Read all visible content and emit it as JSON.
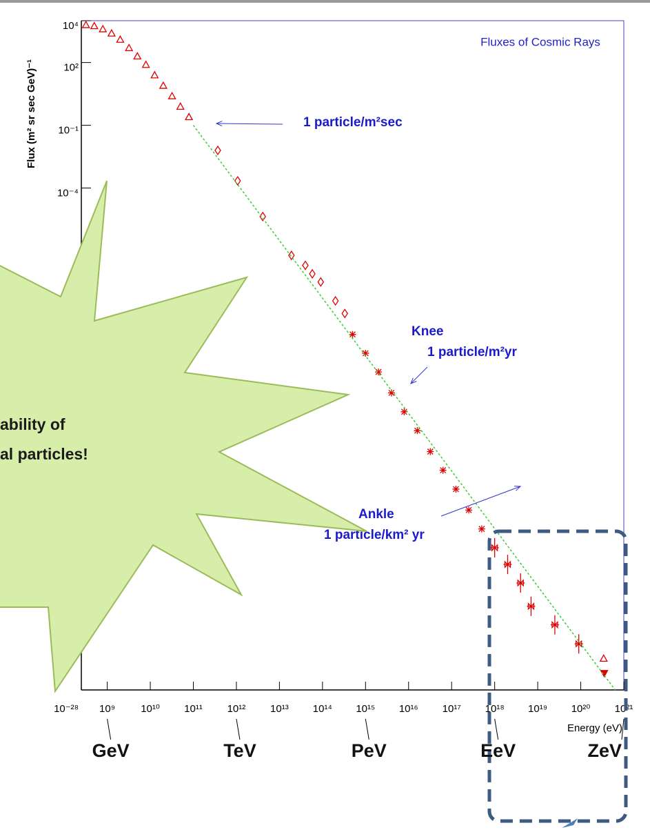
{
  "chart_data": {
    "type": "scatter",
    "title": "Fluxes of Cosmic Rays",
    "x_label": "Energy (eV)",
    "y_label": "Flux (m² sr sec GeV)⁻¹",
    "log_x": true,
    "log_y": true,
    "xlim": [
      250000000.0,
      1e+21
    ],
    "ylim": [
      1e-28,
      10000.0
    ],
    "xticks": [
      {
        "value": 1000000000.0,
        "label": "10⁹"
      },
      {
        "value": 10000000000.0,
        "label": "10¹⁰"
      },
      {
        "value": 100000000000.0,
        "label": "10¹¹"
      },
      {
        "value": 1000000000000.0,
        "label": "10¹²"
      },
      {
        "value": 10000000000000.0,
        "label": "10¹³"
      },
      {
        "value": 100000000000000.0,
        "label": "10¹⁴"
      },
      {
        "value": 1000000000000000.0,
        "label": "10¹⁵"
      },
      {
        "value": 1e+16,
        "label": "10¹⁶"
      },
      {
        "value": 1e+17,
        "label": "10¹⁷"
      },
      {
        "value": 1e+18,
        "label": "10¹⁸"
      },
      {
        "value": 1e+19,
        "label": "10¹⁹"
      },
      {
        "value": 1e+20,
        "label": "10²⁰"
      },
      {
        "value": 1e+21,
        "label": "10²¹"
      }
    ],
    "yticks": [
      {
        "value": 10000.0,
        "label": "10⁴"
      },
      {
        "value": 100.0,
        "label": "10²"
      },
      {
        "value": 0.1,
        "label": "10⁻¹"
      },
      {
        "value": 0.0001,
        "label": "10⁻⁴"
      },
      {
        "value": 1e-28,
        "label": "10⁻²⁸"
      }
    ],
    "series": [
      {
        "color": "#e00000",
        "marker": "triangle",
        "x": [
          320000000.0,
          500000000.0,
          790000000.0,
          1260000000.0,
          2000000000.0,
          3200000000.0,
          5000000000.0,
          7900000000.0,
          12600000000.0,
          20000000000.0,
          32000000000.0,
          50000000000.0,
          79000000000.0
        ],
        "values": [
          6300,
          5600,
          4000,
          2500,
          1260,
          500,
          200,
          79,
          25,
          7.9,
          2.5,
          0.79,
          0.25
        ]
      },
      {
        "color": "#e00000",
        "marker": "diamond",
        "x": [
          370000000000.0,
          1070000000000.0,
          4100000000000.0,
          19000000000000.0,
          40000000000000.0,
          58000000000000.0,
          91000000000000.0,
          200000000000000.0,
          330000000000000.0
        ],
        "values": [
          0.0063,
          0.00022,
          4.3e-06,
          6e-08,
          2e-08,
          7.9e-09,
          3.2e-09,
          4e-10,
          1e-10
        ]
      },
      {
        "color": "#e00000",
        "marker": "asterisk",
        "x": [
          500000000000000.0,
          1000000000000000.0,
          2000000000000000.0,
          4000000000000000.0,
          7900000000000000.0,
          1.6e+16,
          3.2e+16,
          6.3e+16,
          1.26e+17,
          2.5e+17,
          5e+17
        ],
        "values": [
          1e-11,
          1.26e-12,
          1.6e-13,
          1.6e-14,
          2e-15,
          2.5e-16,
          2.5e-17,
          3.2e-18,
          4e-19,
          4e-20,
          5e-21
        ]
      },
      {
        "color": "#e00000",
        "marker": "cross",
        "x": [
          1e+18,
          2e+18,
          4e+18,
          7e+18,
          2.5e+19,
          9e+19
        ],
        "values": [
          6.3e-22,
          1e-22,
          1.3e-23,
          1e-24,
          1.3e-25,
          1.6e-26
        ]
      },
      {
        "color": "#e00000",
        "marker": "triangle",
        "x": [
          3.4e+20
        ],
        "values": [
          3.2e-27
        ]
      },
      {
        "color": "#e00000",
        "marker": "filled-triangle-down",
        "x": [
          3.5e+20
        ],
        "values": [
          6.3e-28
        ]
      },
      {
        "color": "#33cc33",
        "style": "dotted-line",
        "x": [
          100000000000.0,
          6.3e+20
        ],
        "values": [
          0.1,
          1e-28
        ]
      }
    ],
    "annotations": [
      "1 particle/m²sec",
      "Knee",
      "1 particle/m²yr",
      "Ankle",
      "1 particle/km² yr"
    ]
  },
  "energy_units": [
    "GeV",
    "TeV",
    "PeV",
    "EeV",
    "ZeV"
  ],
  "callout": {
    "lines": [
      "ability of",
      "al particles!"
    ]
  }
}
